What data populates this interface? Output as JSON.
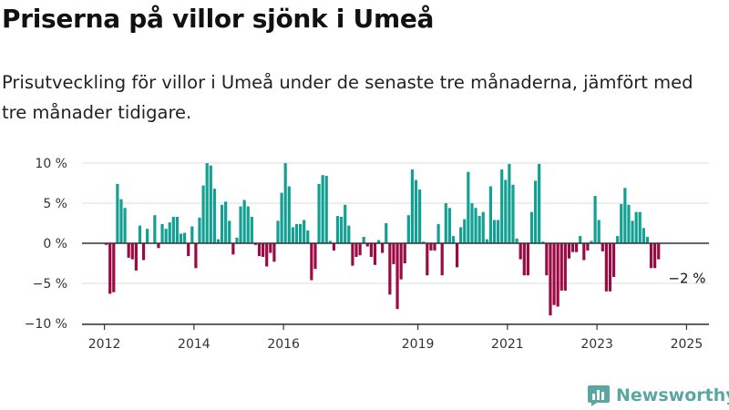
{
  "title": "Priserna på villor sjönk i Umeå",
  "subtitle": "Prisutveckling för villor i Umeå under de senaste tre månaderna, jämfört med tre månader tidigare.",
  "logo": {
    "name": "Newsworthy",
    "icon": "bar-chart-logo-icon"
  },
  "colors": {
    "positive": "#12a093",
    "negative": "#9b0a42",
    "grid": "#dddddd",
    "axis": "#333333"
  },
  "chart_data": {
    "type": "bar",
    "xlabel": "",
    "ylabel": "",
    "ylim": [
      -10,
      10
    ],
    "x_range": [
      "2011-07",
      "2025-07"
    ],
    "y_ticks": [
      {
        "value": 10,
        "label": "10 %"
      },
      {
        "value": 5,
        "label": "5 %"
      },
      {
        "value": 0,
        "label": "0 %"
      },
      {
        "value": -5,
        "label": "−5 %"
      },
      {
        "value": -10,
        "label": "−10 %"
      }
    ],
    "x_ticks": [
      {
        "x": "2012-01",
        "label": "2012"
      },
      {
        "x": "2014-01",
        "label": "2014"
      },
      {
        "x": "2016-01",
        "label": "2016"
      },
      {
        "x": "2019-01",
        "label": "2019"
      },
      {
        "x": "2021-01",
        "label": "2021"
      },
      {
        "x": "2023-01",
        "label": "2023"
      },
      {
        "x": "2025-01",
        "label": "2025"
      }
    ],
    "grid": true,
    "start": "2012-01",
    "values": [
      -0.2,
      -6.3,
      -6.1,
      7.4,
      5.5,
      4.4,
      -1.8,
      -2,
      -3.4,
      2.2,
      -2.1,
      1.8,
      0,
      3.5,
      -0.6,
      2.4,
      1.8,
      2.6,
      3.3,
      3.3,
      1.2,
      1.3,
      -1.6,
      2.1,
      -3.1,
      3.2,
      7.2,
      10,
      9.7,
      6.8,
      0.5,
      4.8,
      5.2,
      2.8,
      -1.4,
      0.7,
      4.6,
      5.4,
      4.6,
      3.3,
      -0.2,
      -1.6,
      -1.7,
      -2.9,
      -1.2,
      -2.3,
      2.8,
      6.3,
      10,
      7.1,
      2,
      2.4,
      2.4,
      2.9,
      1.6,
      -4.6,
      -3.2,
      7.4,
      8.5,
      8.4,
      0.3,
      -0.9,
      3.4,
      3.3,
      4.8,
      2.2,
      -2.8,
      -1.7,
      -1.5,
      0.8,
      -0.4,
      -1.7,
      -2.7,
      0.4,
      -1.2,
      2.5,
      -6.4,
      -2.6,
      -8.2,
      -4.5,
      -2.5,
      3.5,
      9.2,
      7.9,
      6.7,
      0.2,
      -4,
      -0.9,
      -0.9,
      2.4,
      -4,
      5,
      4.4,
      0.9,
      -3,
      2,
      3,
      8.9,
      5,
      4.4,
      3.4,
      3.9,
      0.5,
      7.1,
      2.9,
      2.9,
      9.2,
      7.9,
      9.9,
      7.3,
      0.6,
      -2,
      -4,
      -4,
      3.9,
      7.8,
      9.9,
      0.2,
      -4,
      -9,
      -7.7,
      -7.9,
      -5.9,
      -5.9,
      -1.9,
      -1.1,
      -1.1,
      0.9,
      -2.1,
      -0.9,
      0.3,
      5.9,
      2.9,
      -1,
      -6,
      -6,
      -4.2,
      0.9,
      4.9,
      6.9,
      4.8,
      2.8,
      3.9,
      3.9,
      1.9,
      0.8,
      -3.1,
      -3.1,
      -2
    ],
    "annotation": {
      "x": "2025-01",
      "value": -2,
      "label": "−2 %"
    }
  }
}
